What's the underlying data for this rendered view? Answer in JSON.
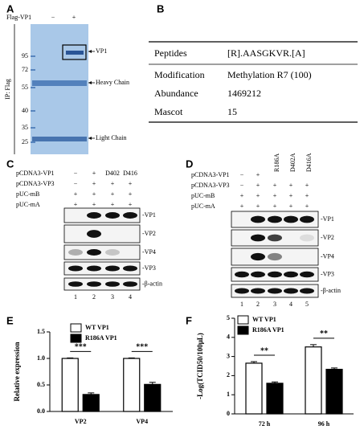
{
  "panel_a": {
    "label": "A",
    "row_label": "Flag-VP1",
    "lanes": [
      "−",
      "+"
    ],
    "side_label": "IP: Flag",
    "markers": [
      95,
      72,
      55,
      40,
      35,
      25
    ],
    "bands": [
      "VP1",
      "Heavy Chain",
      "Light Chain"
    ]
  },
  "panel_b": {
    "label": "B",
    "table": {
      "rows": [
        [
          "Peptides",
          "[R].AASGKVR.[A]"
        ],
        [
          "Modification",
          "Methylation R7 (100)"
        ],
        [
          "Abundance",
          "1469212"
        ],
        [
          "Mascot",
          "15"
        ]
      ]
    }
  },
  "panel_c": {
    "label": "C",
    "conditions": [
      {
        "name": "pCDNA3-VP1",
        "lanes": [
          "−",
          "+",
          "D402",
          "D416"
        ]
      },
      {
        "name": "pCDNA3-VP3",
        "lanes": [
          "−",
          "+",
          "+",
          "+"
        ]
      },
      {
        "name": "pUC-mB",
        "lanes": [
          "+",
          "+",
          "+",
          "+"
        ]
      },
      {
        "name": "pUC-mA",
        "lanes": [
          "+",
          "+",
          "+",
          "+"
        ]
      }
    ],
    "blots": [
      "-VP1",
      "-VP2",
      "-VP4",
      "-VP3",
      "-β-actin"
    ],
    "lane_numbers": [
      "1",
      "2",
      "3",
      "4"
    ]
  },
  "panel_d": {
    "label": "D",
    "conditions": [
      {
        "name": "pCDNA3-VP1",
        "lanes": [
          "−",
          "+",
          "R186A",
          "D402A",
          "D416A"
        ]
      },
      {
        "name": "pCDNA3-VP3",
        "lanes": [
          "−",
          "+",
          "+",
          "+",
          "+"
        ]
      },
      {
        "name": "pUC-mB",
        "lanes": [
          "+",
          "+",
          "+",
          "+",
          "+"
        ]
      },
      {
        "name": "pUC-mA",
        "lanes": [
          "+",
          "+",
          "+",
          "+",
          "+"
        ]
      }
    ],
    "blots": [
      "-VP1",
      "-VP2",
      "-VP4",
      "-VP3",
      "-β-actin"
    ],
    "lane_numbers": [
      "1",
      "2",
      "3",
      "4",
      "5"
    ]
  },
  "chart_data": [
    {
      "type": "bar",
      "label": "E",
      "y_label": "Relative expression",
      "categories": [
        "VP2",
        "VP4"
      ],
      "series": [
        {
          "name": "WT VP1",
          "color": "#ffffff",
          "values": [
            1.0,
            1.0
          ],
          "errors": [
            0.01,
            0.01
          ]
        },
        {
          "name": "R186A VP1",
          "color": "#000000",
          "values": [
            0.32,
            0.51
          ],
          "errors": [
            0.03,
            0.04
          ]
        }
      ],
      "annotations": [
        "***",
        "***"
      ],
      "ylim": [
        0,
        1.5
      ],
      "yticks": [
        {
          "value": 0,
          "label": "0.0"
        },
        {
          "value": 0.5,
          "label": "0.5"
        },
        {
          "value": 1,
          "label": "1.0"
        },
        {
          "value": 1.5,
          "label": "1.5"
        }
      ]
    },
    {
      "type": "bar",
      "label": "F",
      "y_label": "-Log(TCID50/100μL)",
      "categories": [
        "72 h",
        "96 h"
      ],
      "series": [
        {
          "name": "WT VP1",
          "color": "#ffffff",
          "values": [
            2.65,
            3.5
          ],
          "errors": [
            0.08,
            0.12
          ]
        },
        {
          "name": "R186A VP1",
          "color": "#000000",
          "values": [
            1.6,
            2.33
          ],
          "errors": [
            0.07,
            0.07
          ]
        }
      ],
      "annotations": [
        "**",
        "**"
      ],
      "ylim": [
        0,
        5
      ],
      "yticks": [
        0,
        1,
        2,
        3,
        4,
        5
      ]
    }
  ]
}
